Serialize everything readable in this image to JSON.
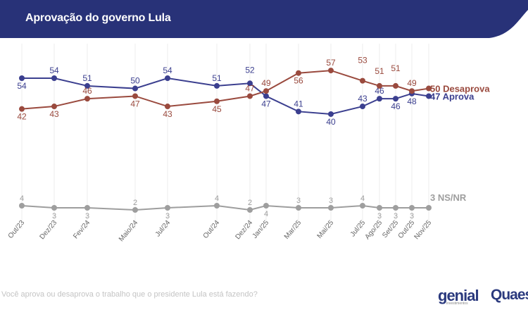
{
  "header": {
    "title": "Aprovação do governo Lula",
    "color": "#283278"
  },
  "footer": {
    "question": "Você aprova ou desaprova o trabalho que o presidente Lula está fazendo?",
    "logo_left": "genial",
    "logo_left_sub": "investimentos",
    "logo_right": "Quaes"
  },
  "chart_data": {
    "type": "line",
    "title": "Aprovação do governo Lula",
    "categories": [
      "Out/23",
      "Dez/23",
      "Fev/24",
      "Maio/24",
      "Jul/24",
      "Out/24",
      "Dez/24",
      "Jan/25",
      "Mar/25",
      "Mai/25",
      "Jul/25",
      "Ago/25",
      "Set/25",
      "Out/25",
      "Nov/25"
    ],
    "grid": "vertical",
    "series": [
      {
        "name": "Aprova",
        "end_label": "47 Aprova",
        "color": "#3b3f8f",
        "values": [
          54,
          54,
          51,
          50,
          54,
          51,
          52,
          47,
          41,
          40,
          43,
          46,
          46,
          48,
          47
        ]
      },
      {
        "name": "Desaprova",
        "end_label": "50 Desaprova",
        "color": "#9a4a3e",
        "values": [
          42,
          43,
          46,
          47,
          43,
          45,
          47,
          49,
          56,
          57,
          53,
          51,
          51,
          49,
          50
        ]
      },
      {
        "name": "NS/NR",
        "end_label": "3 NS/NR",
        "color": "#9e9e9e",
        "values": [
          4,
          3,
          3,
          2,
          3,
          4,
          2,
          4,
          3,
          3,
          4,
          3,
          3,
          3,
          3
        ]
      }
    ]
  }
}
